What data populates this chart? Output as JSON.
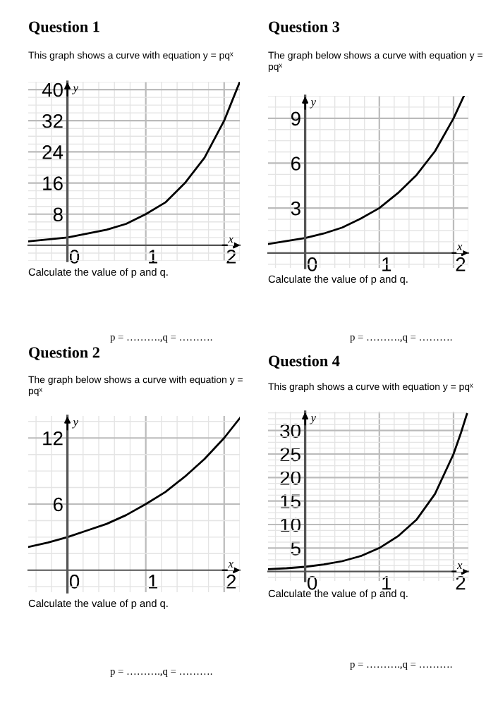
{
  "chart_data": [
    {
      "type": "line",
      "title": "Question 1",
      "subtitle": "This graph shows a curve with equation y = pqˣ",
      "xlabel": "x",
      "ylabel": "y",
      "annotations": [
        "Calculate the value of p and q.",
        "p = ……….,q = ………."
      ],
      "x": [
        -0.5,
        -0.25,
        0,
        0.25,
        0.5,
        0.75,
        1,
        1.25,
        1.5,
        1.75,
        2,
        2.1,
        2.2
      ],
      "series": [
        {
          "color": "#000000",
          "values": [
            1,
            1.5,
            2,
            3,
            4,
            5.5,
            8,
            11,
            16,
            22.5,
            32,
            37,
            42
          ]
        }
      ],
      "xlim": [
        -0.5,
        2.2
      ],
      "ylim": [
        -4,
        42
      ],
      "xticks": [
        0,
        1,
        2
      ],
      "yticks": [
        8,
        16,
        24,
        32,
        40
      ],
      "grid": true
    },
    {
      "type": "line",
      "title": "Question 3",
      "subtitle": "The graph below shows a curve with equation y = pqˣ",
      "xlabel": "x",
      "ylabel": "y",
      "annotations": [
        "Calculate the value of p and q.",
        "p = ……….,q = ………."
      ],
      "x": [
        -0.5,
        -0.25,
        0,
        0.25,
        0.5,
        0.75,
        1,
        1.25,
        1.5,
        1.75,
        2,
        2.14
      ],
      "series": [
        {
          "color": "#000000",
          "values": [
            0.6,
            0.8,
            1,
            1.3,
            1.7,
            2.3,
            3,
            4,
            5.2,
            6.8,
            9,
            10.5
          ]
        }
      ],
      "xlim": [
        -0.5,
        2.2
      ],
      "ylim": [
        -1,
        10.5
      ],
      "xticks": [
        0,
        1,
        2
      ],
      "yticks": [
        3,
        6,
        9
      ],
      "grid": true
    },
    {
      "type": "line",
      "title": "Question 2",
      "subtitle": "The graph below shows a curve with equation y = pqˣ",
      "xlabel": "x",
      "ylabel": "y",
      "annotations": [
        "Calculate the value of p and q.",
        "p = ……….,q = ………."
      ],
      "x": [
        -0.5,
        -0.25,
        0,
        0.25,
        0.5,
        0.75,
        1,
        1.25,
        1.5,
        1.75,
        2,
        2.2
      ],
      "series": [
        {
          "color": "#000000",
          "values": [
            2.1,
            2.5,
            3,
            3.6,
            4.2,
            5,
            6,
            7.1,
            8.5,
            10.1,
            12,
            13.8
          ]
        }
      ],
      "xlim": [
        -0.5,
        2.2
      ],
      "ylim": [
        -2,
        14
      ],
      "xticks": [
        0,
        1,
        2
      ],
      "yticks": [
        6,
        12
      ],
      "grid": true
    },
    {
      "type": "line",
      "title": "Question 4",
      "subtitle": "This graph shows a curve with equation y = pqˣ",
      "xlabel": "x",
      "ylabel": "y",
      "annotations": [
        "Calculate the value of p and q.",
        "p = ……….,q = ………."
      ],
      "x": [
        -0.5,
        -0.25,
        0,
        0.25,
        0.5,
        0.75,
        1,
        1.25,
        1.5,
        1.75,
        2,
        2.1,
        2.18
      ],
      "series": [
        {
          "color": "#000000",
          "values": [
            0.5,
            0.7,
            1,
            1.5,
            2.2,
            3.3,
            5,
            7.5,
            11,
            16.5,
            25,
            29.5,
            33.5
          ]
        }
      ],
      "xlim": [
        -0.5,
        2.2
      ],
      "ylim": [
        -2,
        34
      ],
      "xticks": [
        0,
        1,
        2
      ],
      "yticks": [
        5,
        10,
        15,
        20,
        25,
        30
      ],
      "grid": true
    }
  ]
}
